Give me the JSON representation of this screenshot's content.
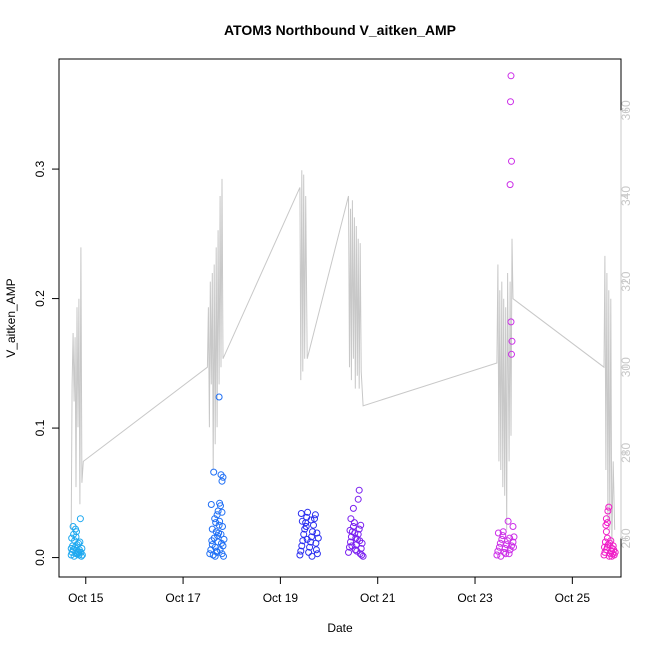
{
  "chart_data": {
    "type": "scatter",
    "title": "ATOM3 Northbound V_aitken_AMP",
    "xlabel": "Date",
    "ylabel": "V_aitken_AMP",
    "x_ticks": [
      "Oct 15",
      "Oct 17",
      "Oct 19",
      "Oct 21",
      "Oct 23",
      "Oct 25"
    ],
    "x_tick_days": [
      15,
      17,
      19,
      21,
      23,
      25
    ],
    "xlim": [
      14.45,
      26.0
    ],
    "ylim": [
      -0.015,
      0.385
    ],
    "y_ticks": [
      0.0,
      0.1,
      0.2,
      0.3
    ],
    "y_tick_labels": [
      "0.0",
      "0.1",
      "0.2",
      "0.3"
    ],
    "y2lim": [
      251,
      372
    ],
    "y2_ticks": [
      260,
      280,
      300,
      320,
      340,
      360
    ],
    "y2_tick_labels": [
      "260",
      "280",
      "300",
      "320",
      "340",
      "360"
    ],
    "colors": {
      "line": "#c8c8c8",
      "day15": "#1fa9f0",
      "day17": "#1f6ff5",
      "day19": "#2a2ef0",
      "day20": "#7a1ff0",
      "day23": "#cc2ee8",
      "day25": "#f01fc8"
    },
    "series": [
      {
        "color_key": "day15",
        "points": [
          [
            14.7,
            0.002
          ],
          [
            14.72,
            0.004
          ],
          [
            14.74,
            0.006
          ],
          [
            14.76,
            0.001
          ],
          [
            14.78,
            0.008
          ],
          [
            14.8,
            0.003
          ],
          [
            14.82,
            0.01
          ],
          [
            14.84,
            0.005
          ],
          [
            14.86,
            0.002
          ],
          [
            14.88,
            0.012
          ],
          [
            14.9,
            0.004
          ],
          [
            14.92,
            0.007
          ],
          [
            14.71,
            0.015
          ],
          [
            14.75,
            0.018
          ],
          [
            14.79,
            0.022
          ],
          [
            14.73,
            0.009
          ],
          [
            14.83,
            0.003
          ],
          [
            14.87,
            0.006
          ],
          [
            14.91,
            0.001
          ],
          [
            14.77,
            0.013
          ],
          [
            14.81,
            0.02
          ],
          [
            14.85,
            0.011
          ],
          [
            14.89,
            0.03
          ],
          [
            14.74,
            0.024
          ],
          [
            14.93,
            0.002
          ],
          [
            14.7,
            0.007
          ],
          [
            14.8,
            0.016
          ],
          [
            14.86,
            0.004
          ]
        ]
      },
      {
        "color_key": "day17",
        "points": [
          [
            17.55,
            0.003
          ],
          [
            17.57,
            0.006
          ],
          [
            17.6,
            0.01
          ],
          [
            17.62,
            0.002
          ],
          [
            17.64,
            0.015
          ],
          [
            17.66,
            0.008
          ],
          [
            17.68,
            0.02
          ],
          [
            17.7,
            0.004
          ],
          [
            17.72,
            0.012
          ],
          [
            17.74,
            0.025
          ],
          [
            17.76,
            0.006
          ],
          [
            17.78,
            0.018
          ],
          [
            17.8,
            0.003
          ],
          [
            17.82,
            0.009
          ],
          [
            17.84,
            0.014
          ],
          [
            17.6,
            0.022
          ],
          [
            17.65,
            0.03
          ],
          [
            17.7,
            0.033
          ],
          [
            17.75,
            0.028
          ],
          [
            17.8,
            0.035
          ],
          [
            17.58,
            0.041
          ],
          [
            17.63,
            0.066
          ],
          [
            17.78,
            0.064
          ],
          [
            17.8,
            0.059
          ],
          [
            17.82,
            0.062
          ],
          [
            17.75,
            0.042
          ],
          [
            17.77,
            0.04
          ],
          [
            17.72,
            0.036
          ],
          [
            17.74,
            0.124
          ],
          [
            17.66,
            0.001
          ],
          [
            17.69,
            0.005
          ],
          [
            17.71,
            0.017
          ],
          [
            17.79,
            0.011
          ],
          [
            17.83,
            0.001
          ],
          [
            17.59,
            0.013
          ],
          [
            17.67,
            0.027
          ],
          [
            17.73,
            0.019
          ],
          [
            17.81,
            0.024
          ]
        ]
      },
      {
        "color_key": "day19",
        "points": [
          [
            19.4,
            0.002
          ],
          [
            19.42,
            0.005
          ],
          [
            19.44,
            0.009
          ],
          [
            19.46,
            0.013
          ],
          [
            19.48,
            0.018
          ],
          [
            19.5,
            0.022
          ],
          [
            19.52,
            0.027
          ],
          [
            19.54,
            0.031
          ],
          [
            19.56,
            0.035
          ],
          [
            19.58,
            0.004
          ],
          [
            19.6,
            0.008
          ],
          [
            19.62,
            0.012
          ],
          [
            19.64,
            0.016
          ],
          [
            19.66,
            0.02
          ],
          [
            19.68,
            0.025
          ],
          [
            19.7,
            0.03
          ],
          [
            19.72,
            0.033
          ],
          [
            19.74,
            0.006
          ],
          [
            19.76,
            0.003
          ],
          [
            19.78,
            0.015
          ],
          [
            19.45,
            0.028
          ],
          [
            19.55,
            0.014
          ],
          [
            19.65,
            0.001
          ],
          [
            19.75,
            0.019
          ],
          [
            19.43,
            0.034
          ],
          [
            19.53,
            0.024
          ],
          [
            19.63,
            0.029
          ],
          [
            19.73,
            0.011
          ]
        ]
      },
      {
        "color_key": "day20",
        "points": [
          [
            20.4,
            0.004
          ],
          [
            20.42,
            0.008
          ],
          [
            20.44,
            0.012
          ],
          [
            20.46,
            0.016
          ],
          [
            20.48,
            0.02
          ],
          [
            20.5,
            0.024
          ],
          [
            20.52,
            0.027
          ],
          [
            20.54,
            0.006
          ],
          [
            20.56,
            0.01
          ],
          [
            20.58,
            0.014
          ],
          [
            20.6,
            0.018
          ],
          [
            20.62,
            0.022
          ],
          [
            20.64,
            0.003
          ],
          [
            20.66,
            0.007
          ],
          [
            20.68,
            0.011
          ],
          [
            20.7,
            0.001
          ],
          [
            20.45,
            0.03
          ],
          [
            20.5,
            0.038
          ],
          [
            20.55,
            0.015
          ],
          [
            20.6,
            0.045
          ],
          [
            20.62,
            0.052
          ],
          [
            20.65,
            0.025
          ],
          [
            20.47,
            0.009
          ],
          [
            20.53,
            0.019
          ],
          [
            20.57,
            0.005
          ],
          [
            20.63,
            0.013
          ],
          [
            20.67,
            0.002
          ],
          [
            20.43,
            0.021
          ]
        ]
      },
      {
        "color_key": "day23",
        "points": [
          [
            23.45,
            0.002
          ],
          [
            23.47,
            0.005
          ],
          [
            23.5,
            0.008
          ],
          [
            23.52,
            0.011
          ],
          [
            23.55,
            0.014
          ],
          [
            23.57,
            0.017
          ],
          [
            23.6,
            0.004
          ],
          [
            23.62,
            0.007
          ],
          [
            23.65,
            0.01
          ],
          [
            23.67,
            0.013
          ],
          [
            23.7,
            0.003
          ],
          [
            23.72,
            0.006
          ],
          [
            23.75,
            0.009
          ],
          [
            23.78,
            0.012
          ],
          [
            23.8,
            0.016
          ],
          [
            23.48,
            0.019
          ],
          [
            23.58,
            0.02
          ],
          [
            23.68,
            0.028
          ],
          [
            23.78,
            0.024
          ],
          [
            23.74,
            0.372
          ],
          [
            23.73,
            0.352
          ],
          [
            23.75,
            0.306
          ],
          [
            23.72,
            0.288
          ],
          [
            23.74,
            0.182
          ],
          [
            23.76,
            0.167
          ],
          [
            23.75,
            0.157
          ],
          [
            23.53,
            0.001
          ],
          [
            23.63,
            0.003
          ],
          [
            23.71,
            0.015
          ],
          [
            23.79,
            0.008
          ]
        ]
      },
      {
        "color_key": "day25",
        "points": [
          [
            25.65,
            0.002
          ],
          [
            25.67,
            0.004
          ],
          [
            25.7,
            0.006
          ],
          [
            25.72,
            0.008
          ],
          [
            25.74,
            0.01
          ],
          [
            25.76,
            0.001
          ],
          [
            25.78,
            0.003
          ],
          [
            25.8,
            0.005
          ],
          [
            25.82,
            0.007
          ],
          [
            25.84,
            0.009
          ],
          [
            25.86,
            0.002
          ],
          [
            25.88,
            0.004
          ],
          [
            25.68,
            0.012
          ],
          [
            25.72,
            0.015
          ],
          [
            25.7,
            0.02
          ],
          [
            25.72,
            0.027
          ],
          [
            25.7,
            0.03
          ],
          [
            25.73,
            0.036
          ],
          [
            25.75,
            0.039
          ],
          [
            25.69,
            0.025
          ],
          [
            25.77,
            0.011
          ],
          [
            25.81,
            0.001
          ],
          [
            25.85,
            0.006
          ],
          [
            25.66,
            0.008
          ],
          [
            25.79,
            0.013
          ],
          [
            25.83,
            0.003
          ]
        ]
      }
    ],
    "line_series": {
      "axis": "right",
      "points": [
        [
          14.7,
          262
        ],
        [
          14.72,
          296
        ],
        [
          14.74,
          308
        ],
        [
          14.76,
          292
        ],
        [
          14.78,
          307
        ],
        [
          14.8,
          272
        ],
        [
          14.82,
          314
        ],
        [
          14.84,
          286
        ],
        [
          14.86,
          316
        ],
        [
          14.88,
          268
        ],
        [
          14.9,
          328
        ],
        [
          14.92,
          273
        ],
        [
          14.95,
          278
        ],
        [
          17.5,
          300
        ],
        [
          17.52,
          314
        ],
        [
          17.54,
          286
        ],
        [
          17.56,
          320
        ],
        [
          17.58,
          296
        ],
        [
          17.6,
          322
        ],
        [
          17.62,
          276
        ],
        [
          17.64,
          324
        ],
        [
          17.66,
          282
        ],
        [
          17.68,
          328
        ],
        [
          17.7,
          286
        ],
        [
          17.72,
          332
        ],
        [
          17.74,
          296
        ],
        [
          17.76,
          340
        ],
        [
          17.78,
          300
        ],
        [
          17.8,
          344
        ],
        [
          17.82,
          302
        ],
        [
          19.4,
          342
        ],
        [
          19.42,
          297
        ],
        [
          19.44,
          346
        ],
        [
          19.46,
          299
        ],
        [
          19.48,
          345
        ],
        [
          19.5,
          302
        ],
        [
          19.52,
          340
        ],
        [
          19.55,
          302
        ],
        [
          20.4,
          340
        ],
        [
          20.42,
          300
        ],
        [
          20.44,
          337
        ],
        [
          20.46,
          297
        ],
        [
          20.48,
          339
        ],
        [
          20.5,
          302
        ],
        [
          20.52,
          335
        ],
        [
          20.54,
          295
        ],
        [
          20.56,
          333
        ],
        [
          20.58,
          298
        ],
        [
          20.6,
          330
        ],
        [
          20.62,
          295
        ],
        [
          20.64,
          329
        ],
        [
          20.66,
          299
        ],
        [
          20.7,
          291
        ],
        [
          23.45,
          301
        ],
        [
          23.47,
          324
        ],
        [
          23.49,
          278
        ],
        [
          23.51,
          318
        ],
        [
          23.53,
          276
        ],
        [
          23.55,
          320
        ],
        [
          23.57,
          272
        ],
        [
          23.59,
          316
        ],
        [
          23.61,
          270
        ],
        [
          23.63,
          314
        ],
        [
          23.65,
          262
        ],
        [
          23.67,
          322
        ],
        [
          23.7,
          278
        ],
        [
          23.72,
          320
        ],
        [
          23.74,
          284
        ],
        [
          23.76,
          330
        ],
        [
          23.78,
          316
        ],
        [
          25.65,
          300
        ],
        [
          25.67,
          326
        ],
        [
          25.69,
          276
        ],
        [
          25.71,
          322
        ],
        [
          25.73,
          264
        ],
        [
          25.75,
          318
        ],
        [
          25.77,
          262
        ],
        [
          25.79,
          316
        ],
        [
          25.81,
          258
        ],
        [
          25.84,
          278
        ],
        [
          25.87,
          262
        ]
      ]
    }
  }
}
